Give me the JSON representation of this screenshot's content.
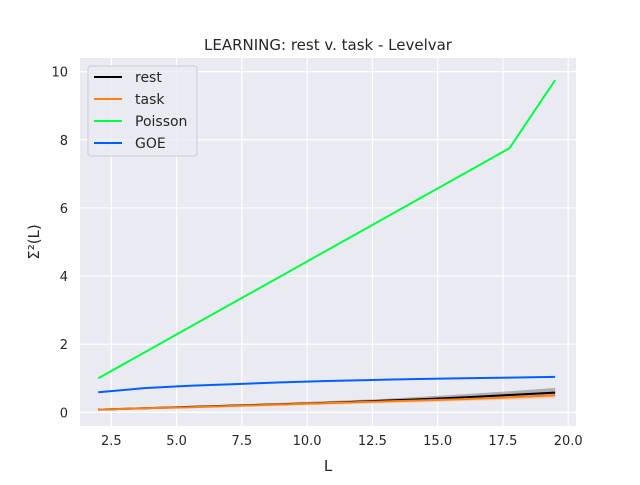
{
  "chart_data": {
    "type": "line",
    "title": "LEARNING: rest v. task - Levelvar",
    "xlabel": "L",
    "ylabel": "Σ²(L)",
    "xlim": [
      1.3,
      20.3
    ],
    "ylim": [
      -0.4,
      10.4
    ],
    "xticks": [
      2.5,
      5.0,
      7.5,
      10.0,
      12.5,
      15.0,
      17.5,
      20.0
    ],
    "xtick_labels": [
      "2.5",
      "5.0",
      "7.5",
      "10.0",
      "12.5",
      "15.0",
      "17.5",
      "20.0"
    ],
    "yticks": [
      0,
      2,
      4,
      6,
      8,
      10
    ],
    "ytick_labels": [
      "0",
      "2",
      "4",
      "6",
      "8",
      "10"
    ],
    "grid": true,
    "legend_position": "top-left",
    "x": [
      2.0,
      3.75,
      5.5,
      7.25,
      9.0,
      10.75,
      12.5,
      14.25,
      16.0,
      17.75,
      19.5
    ],
    "series": [
      {
        "name": "rest",
        "color": "#000000",
        "values": [
          0.08,
          0.12,
          0.16,
          0.2,
          0.24,
          0.28,
          0.33,
          0.38,
          0.44,
          0.51,
          0.58
        ],
        "band_lower": [
          0.06,
          0.1,
          0.13,
          0.17,
          0.21,
          0.25,
          0.29,
          0.33,
          0.38,
          0.43,
          0.48
        ],
        "band_upper": [
          0.1,
          0.14,
          0.18,
          0.23,
          0.28,
          0.33,
          0.38,
          0.45,
          0.53,
          0.62,
          0.72
        ]
      },
      {
        "name": "task",
        "color": "#ff7f0e",
        "values": [
          0.08,
          0.12,
          0.15,
          0.19,
          0.23,
          0.27,
          0.31,
          0.35,
          0.39,
          0.44,
          0.5
        ],
        "band_lower": [
          0.06,
          0.09,
          0.12,
          0.16,
          0.19,
          0.22,
          0.26,
          0.29,
          0.33,
          0.37,
          0.42
        ],
        "band_upper": [
          0.1,
          0.14,
          0.18,
          0.22,
          0.27,
          0.31,
          0.36,
          0.41,
          0.46,
          0.52,
          0.58
        ]
      },
      {
        "name": "Poisson",
        "color": "#00ff40",
        "values": [
          1.0,
          1.75,
          2.5,
          3.25,
          4.0,
          4.75,
          5.5,
          6.25,
          7.0,
          7.75,
          9.75
        ]
      },
      {
        "name": "GOE",
        "color": "#0060ff",
        "values": [
          0.59,
          0.71,
          0.78,
          0.83,
          0.88,
          0.92,
          0.95,
          0.98,
          1.0,
          1.02,
          1.04
        ]
      }
    ]
  }
}
